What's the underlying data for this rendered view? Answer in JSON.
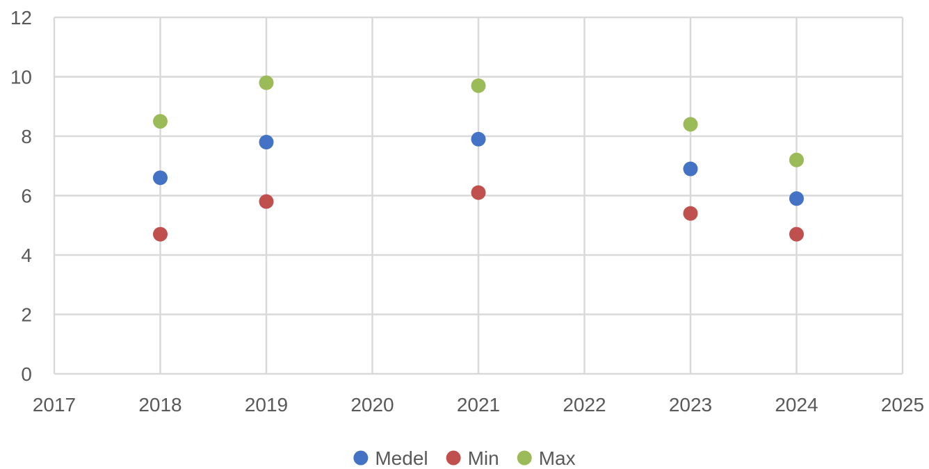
{
  "chart_data": {
    "type": "scatter",
    "title": "",
    "xlabel": "",
    "ylabel": "",
    "xlim": [
      2017,
      2025
    ],
    "ylim": [
      0,
      12
    ],
    "xticks": [
      "2017",
      "2018",
      "2019",
      "2020",
      "2021",
      "2022",
      "2023",
      "2024",
      "2025"
    ],
    "yticks": [
      "0",
      "2",
      "4",
      "6",
      "8",
      "10",
      "12"
    ],
    "grid": true,
    "legend": "bottom",
    "series": [
      {
        "name": "Medel",
        "color": "#4472C4",
        "points": [
          {
            "x": 2018,
            "y": 6.6
          },
          {
            "x": 2019,
            "y": 7.8
          },
          {
            "x": 2021,
            "y": 7.9
          },
          {
            "x": 2023,
            "y": 6.9
          },
          {
            "x": 2024,
            "y": 5.9
          }
        ]
      },
      {
        "name": "Min",
        "color": "#C0504D",
        "points": [
          {
            "x": 2018,
            "y": 4.7
          },
          {
            "x": 2019,
            "y": 5.8
          },
          {
            "x": 2021,
            "y": 6.1
          },
          {
            "x": 2023,
            "y": 5.4
          },
          {
            "x": 2024,
            "y": 4.7
          }
        ]
      },
      {
        "name": "Max",
        "color": "#9BBB59",
        "points": [
          {
            "x": 2018,
            "y": 8.5
          },
          {
            "x": 2019,
            "y": 9.8
          },
          {
            "x": 2021,
            "y": 9.7
          },
          {
            "x": 2023,
            "y": 8.4
          },
          {
            "x": 2024,
            "y": 7.2
          }
        ]
      }
    ]
  }
}
